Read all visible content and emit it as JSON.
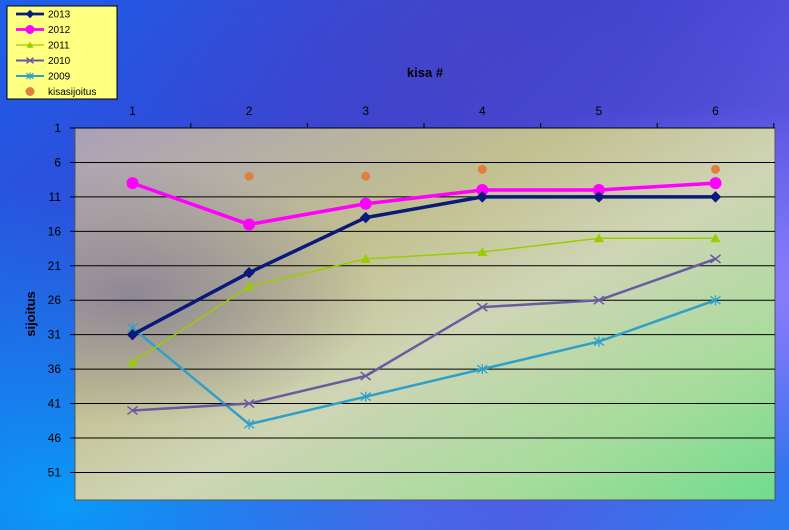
{
  "chart_data": {
    "type": "line",
    "title": "",
    "xlabel": "kisa #",
    "ylabel": "sijoitus",
    "categories": [
      "1",
      "2",
      "3",
      "4",
      "5",
      "6"
    ],
    "y_ticks": [
      "1",
      "6",
      "11",
      "16",
      "21",
      "26",
      "31",
      "36",
      "41",
      "46",
      "51"
    ],
    "ylim": [
      1,
      55
    ],
    "y_reversed": true,
    "grid": true,
    "legend_position": "top-left",
    "series": [
      {
        "name": "2013",
        "color": "#0a1a7a",
        "marker": "diamond",
        "values": [
          31,
          22,
          14,
          11,
          11,
          11
        ]
      },
      {
        "name": "2012",
        "color": "#ff00ff",
        "marker": "circle",
        "values": [
          9,
          15,
          12,
          10,
          10,
          9
        ]
      },
      {
        "name": "2011",
        "color": "#9acd00",
        "marker": "triangle",
        "values": [
          35,
          24,
          20,
          19,
          17,
          17
        ]
      },
      {
        "name": "2010",
        "color": "#6a5aa0",
        "marker": "x",
        "values": [
          42,
          41,
          37,
          27,
          26,
          20
        ]
      },
      {
        "name": "2009",
        "color": "#2fa0c8",
        "marker": "star",
        "values": [
          30,
          44,
          40,
          36,
          32,
          26
        ]
      },
      {
        "name": "kisasijoitus",
        "color": "#e08040",
        "marker": "dot",
        "line": false,
        "values": [
          31,
          8,
          8,
          7,
          11,
          7
        ]
      }
    ]
  }
}
